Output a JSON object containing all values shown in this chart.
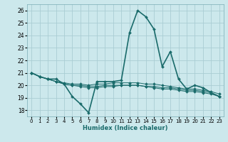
{
  "xlabel": "Humidex (Indice chaleur)",
  "bg_color": "#cce8ec",
  "grid_color": "#aacdd4",
  "line_color": "#1a6b6b",
  "xlim": [
    -0.5,
    23.5
  ],
  "ylim": [
    17.5,
    26.5
  ],
  "yticks": [
    18,
    19,
    20,
    21,
    22,
    23,
    24,
    25,
    26
  ],
  "xtick_labels": [
    "0",
    "1",
    "2",
    "3",
    "4",
    "5",
    "6",
    "7",
    "8",
    "9",
    "10",
    "11",
    "12",
    "13",
    "14",
    "15",
    "16",
    "17",
    "18",
    "19",
    "20",
    "21",
    "22",
    "23"
  ],
  "series": [
    [
      21.0,
      20.7,
      20.5,
      20.5,
      20.1,
      19.1,
      18.5,
      17.8,
      20.3,
      20.3,
      20.3,
      20.4,
      24.2,
      26.0,
      25.5,
      24.5,
      21.5,
      22.7,
      20.5,
      19.7,
      20.0,
      19.8,
      19.4,
      19.1
    ],
    [
      21.0,
      20.7,
      20.5,
      20.3,
      20.2,
      20.1,
      20.1,
      20.0,
      20.1,
      20.1,
      20.2,
      20.2,
      20.2,
      20.2,
      20.1,
      20.1,
      20.0,
      19.9,
      19.8,
      19.7,
      19.7,
      19.6,
      19.5,
      19.3
    ],
    [
      21.0,
      20.7,
      20.5,
      20.3,
      20.1,
      20.0,
      20.0,
      19.9,
      19.9,
      20.0,
      20.0,
      20.0,
      20.0,
      20.0,
      19.9,
      19.9,
      19.8,
      19.8,
      19.7,
      19.6,
      19.6,
      19.5,
      19.4,
      19.1
    ],
    [
      21.0,
      20.7,
      20.5,
      20.3,
      20.1,
      20.0,
      19.9,
      19.8,
      19.8,
      19.9,
      19.9,
      20.0,
      20.0,
      20.0,
      19.9,
      19.8,
      19.7,
      19.7,
      19.6,
      19.5,
      19.5,
      19.4,
      19.3,
      19.1
    ]
  ],
  "linewidths": [
    1.2,
    0.7,
    0.7,
    0.7
  ],
  "markersize": 2.0,
  "xlabel_fontsize": 6.0,
  "ytick_fontsize": 5.5,
  "xtick_fontsize": 5.0
}
